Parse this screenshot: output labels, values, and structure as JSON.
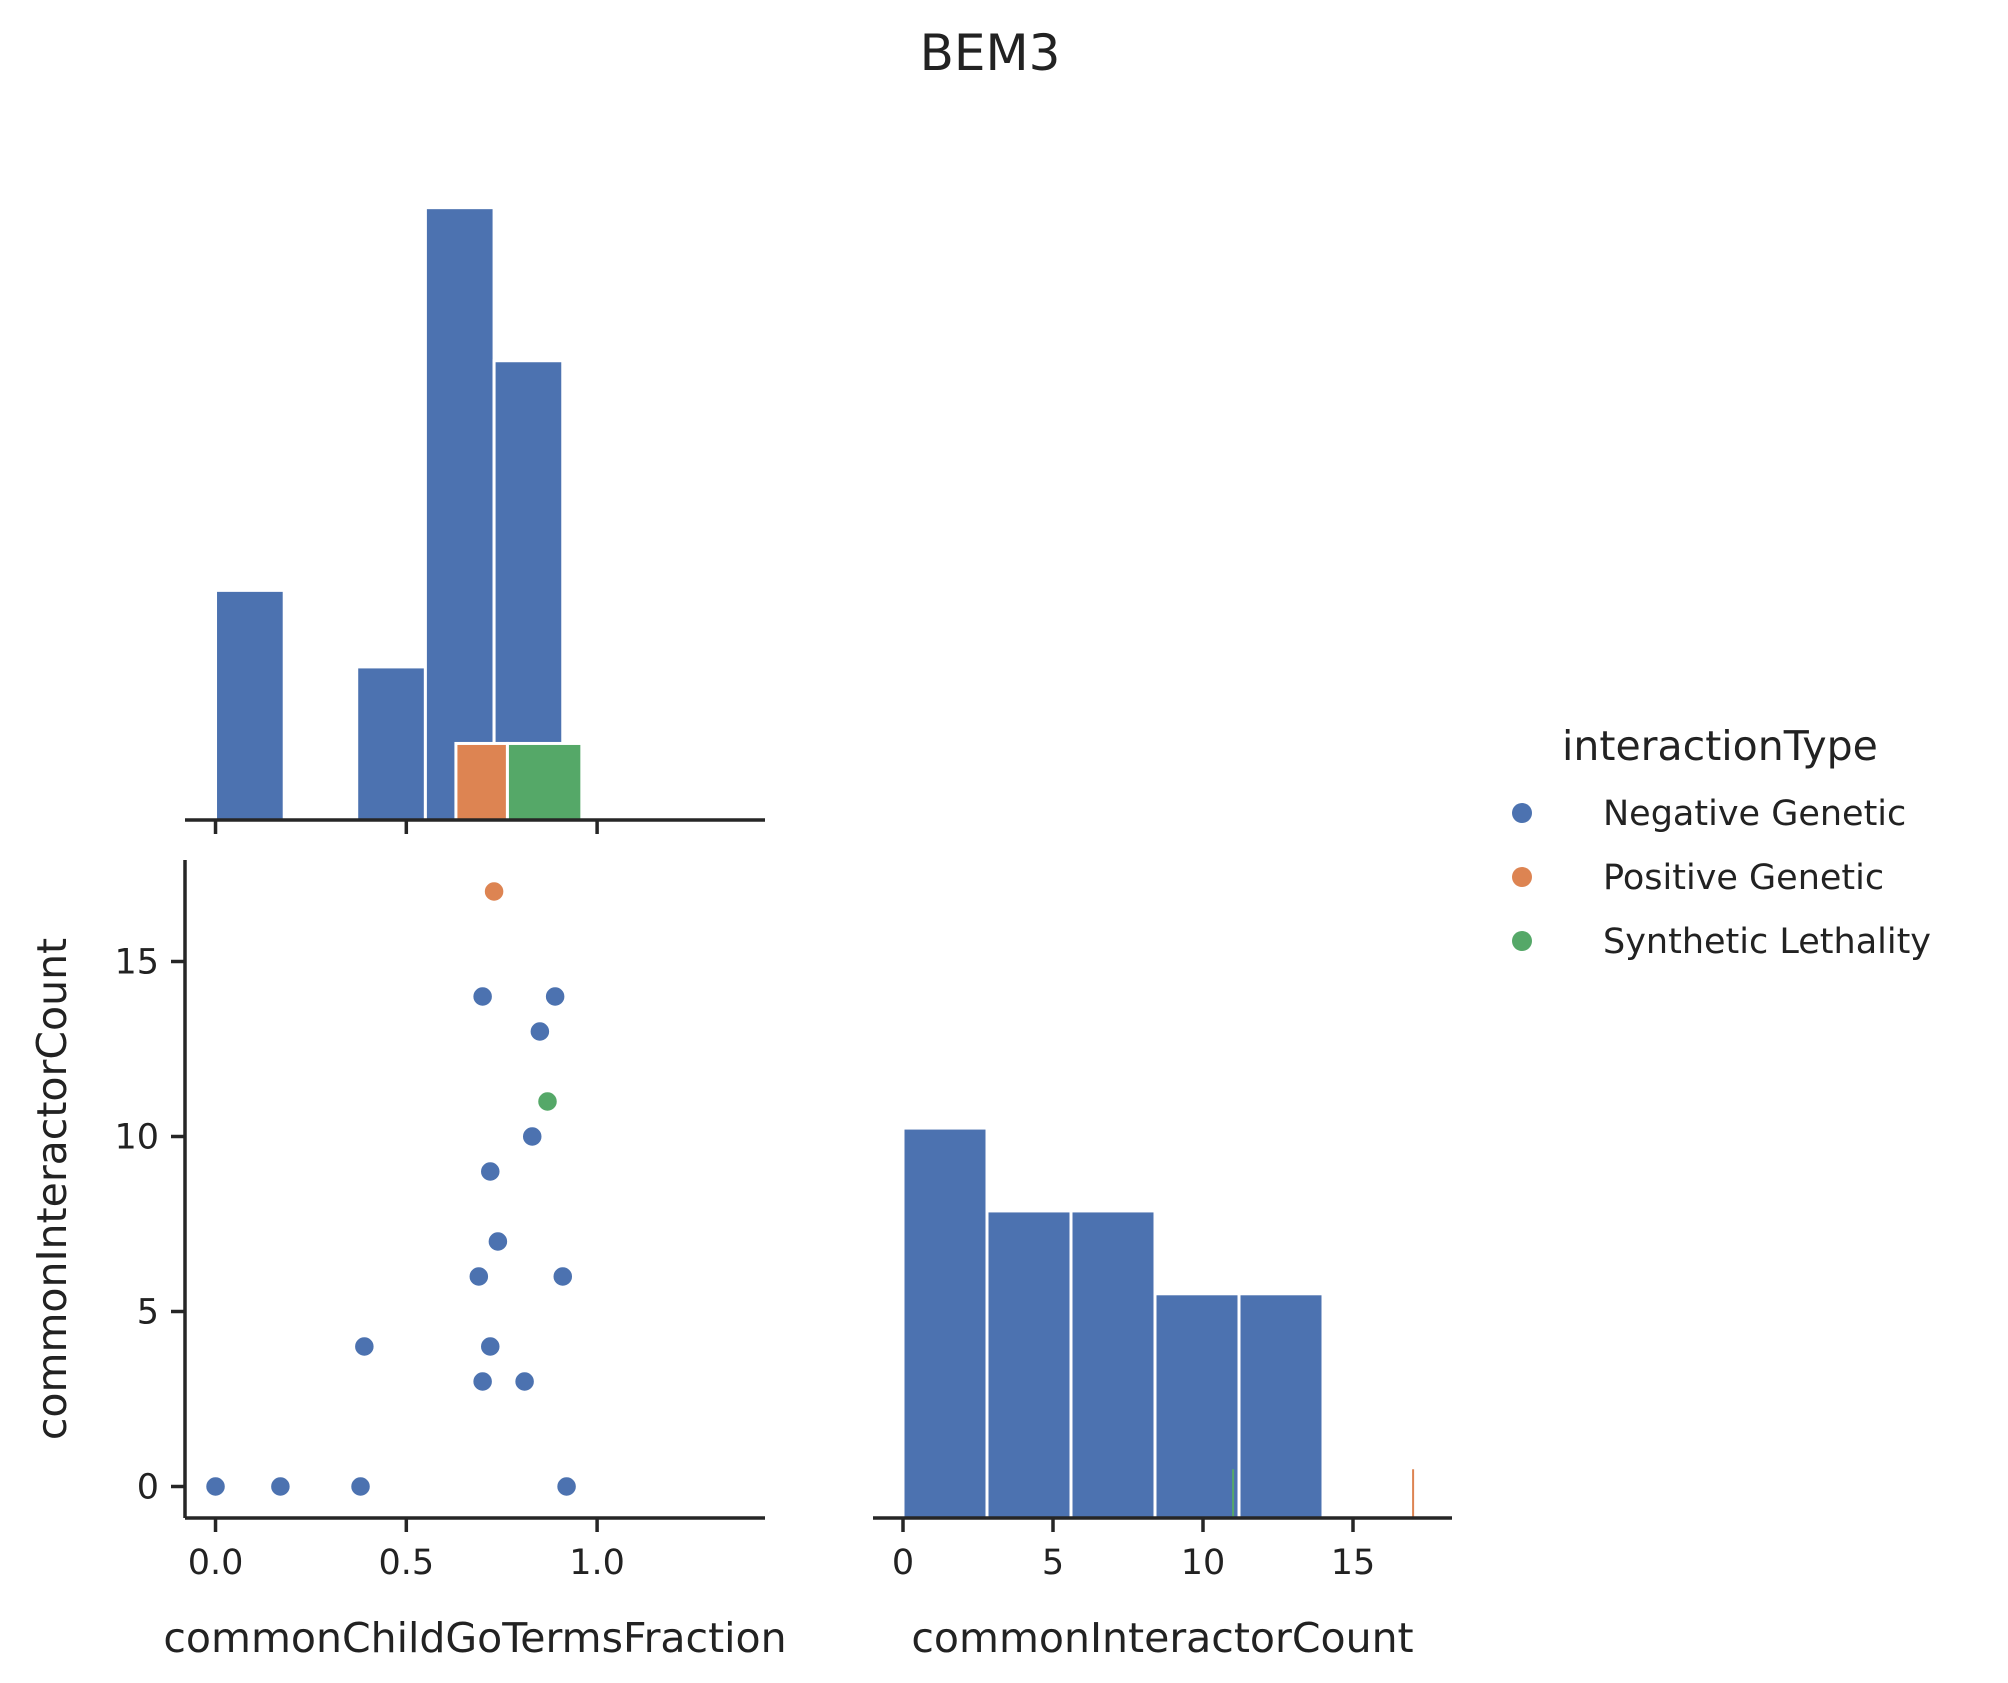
{
  "figure": {
    "title": "BEM3"
  },
  "legend": {
    "title": "interactionType",
    "placement": "right",
    "items": [
      {
        "label": "Negative Genetic",
        "color": "#4c72b0"
      },
      {
        "label": "Positive Genetic",
        "color": "#dd8452"
      },
      {
        "label": "Synthetic Lethality",
        "color": "#55a868"
      }
    ]
  },
  "chart_data": [
    {
      "type": "bar",
      "name": "hist-commonChildGoTermsFraction",
      "xlim": [
        -0.08,
        1.44
      ],
      "xticks": [
        "0.0",
        "0.5",
        "1.0"
      ],
      "xtick_values": [
        0.0,
        0.5,
        1.0
      ],
      "ylim": [
        0,
        8.1
      ],
      "series": [
        {
          "name": "Negative Genetic",
          "color": "#4c72b0",
          "bins": [
            [
              0.0,
              0.18,
              3
            ],
            [
              0.37,
              0.55,
              2
            ],
            [
              0.55,
              0.73,
              8
            ],
            [
              0.73,
              0.91,
              6
            ]
          ]
        },
        {
          "name": "Positive Genetic",
          "color": "#dd8452",
          "bins": [
            [
              0.63,
              0.765,
              1
            ]
          ]
        },
        {
          "name": "Synthetic Lethality",
          "color": "#55a868",
          "bins": [
            [
              0.765,
              0.96,
              1
            ]
          ]
        }
      ]
    },
    {
      "type": "scatter",
      "name": "scatter-fraction-vs-count",
      "xlabel": "commonChildGoTermsFraction",
      "ylabel": "commonInteractorCount",
      "xlim": [
        -0.08,
        1.44
      ],
      "ylim": [
        -0.9,
        17.9
      ],
      "xticks": [
        "0.0",
        "0.5",
        "1.0"
      ],
      "xtick_values": [
        0.0,
        0.5,
        1.0
      ],
      "yticks": [
        "0",
        "5",
        "10",
        "15"
      ],
      "ytick_values": [
        0,
        5,
        10,
        15
      ],
      "series": [
        {
          "name": "Negative Genetic",
          "color": "#4c72b0",
          "points": [
            [
              0.0,
              0
            ],
            [
              0.17,
              0
            ],
            [
              0.38,
              0
            ],
            [
              0.92,
              0
            ],
            [
              0.39,
              4
            ],
            [
              0.72,
              4
            ],
            [
              0.7,
              3
            ],
            [
              0.81,
              3
            ],
            [
              0.69,
              6
            ],
            [
              0.91,
              6
            ],
            [
              0.74,
              7
            ],
            [
              0.72,
              9
            ],
            [
              0.83,
              10
            ],
            [
              0.85,
              13
            ],
            [
              0.7,
              14
            ],
            [
              0.89,
              14
            ]
          ]
        },
        {
          "name": "Positive Genetic",
          "color": "#dd8452",
          "points": [
            [
              0.73,
              17
            ]
          ]
        },
        {
          "name": "Synthetic Lethality",
          "color": "#55a868",
          "points": [
            [
              0.87,
              11
            ]
          ]
        }
      ]
    },
    {
      "type": "bar",
      "name": "hist-commonInteractorCount",
      "xlabel": "commonInteractorCount",
      "xlim": [
        -1.0,
        18.3
      ],
      "xticks": [
        "0",
        "5",
        "10",
        "15"
      ],
      "xtick_values": [
        0,
        5,
        10,
        15
      ],
      "ylim": [
        0,
        13.5
      ],
      "series": [
        {
          "name": "Negative Genetic",
          "color": "#4c72b0",
          "bins": [
            [
              0.0,
              2.8,
              8
            ],
            [
              2.8,
              5.6,
              6.3
            ],
            [
              5.6,
              8.4,
              6.3
            ],
            [
              8.4,
              11.2,
              4.6
            ],
            [
              11.2,
              14.0,
              4.6
            ]
          ]
        },
        {
          "name": "Positive Genetic",
          "color": "#dd8452",
          "bins": [
            [
              16.97,
              17.03,
              1.0
            ]
          ]
        },
        {
          "name": "Synthetic Lethality",
          "color": "#55a868",
          "bins": [
            [
              10.97,
              11.03,
              1.0
            ]
          ]
        }
      ]
    }
  ]
}
